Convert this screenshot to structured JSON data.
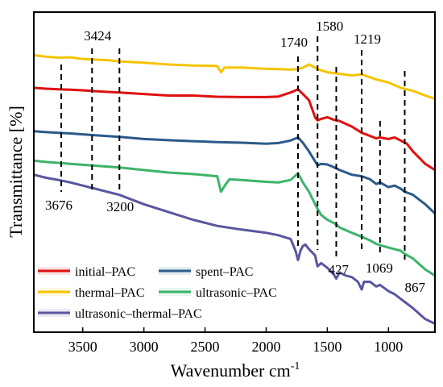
{
  "chart_data": {
    "type": "line",
    "xlabel_main": "Wavenumber cm",
    "xlabel_sup": "-1",
    "ylabel": "Transmittance [%]",
    "xlim": [
      3900,
      620
    ],
    "x_reversed": true,
    "yticks_shown": false,
    "x_ticks": [
      3500,
      3000,
      2500,
      2000,
      1500,
      1000
    ],
    "x_tick_labels": [
      "3500",
      "3000",
      "2500",
      "2000",
      "1500",
      "1000"
    ],
    "grid": false,
    "legend_position": "lower-left",
    "series": [
      {
        "name": "thermal–PAC",
        "color": "#f5c400",
        "points": [
          [
            3900,
            0.83
          ],
          [
            3800,
            0.825
          ],
          [
            3700,
            0.822
          ],
          [
            3600,
            0.823
          ],
          [
            3500,
            0.818
          ],
          [
            3424,
            0.816
          ],
          [
            3300,
            0.814
          ],
          [
            3200,
            0.81
          ],
          [
            3000,
            0.806
          ],
          [
            2800,
            0.8
          ],
          [
            2600,
            0.797
          ],
          [
            2400,
            0.795
          ],
          [
            2370,
            0.775
          ],
          [
            2340,
            0.79
          ],
          [
            2200,
            0.79
          ],
          [
            2000,
            0.786
          ],
          [
            1900,
            0.785
          ],
          [
            1800,
            0.784
          ],
          [
            1740,
            0.785
          ],
          [
            1700,
            0.79
          ],
          [
            1650,
            0.8
          ],
          [
            1600,
            0.79
          ],
          [
            1580,
            0.785
          ],
          [
            1500,
            0.775
          ],
          [
            1400,
            0.77
          ],
          [
            1300,
            0.765
          ],
          [
            1219,
            0.768
          ],
          [
            1100,
            0.752
          ],
          [
            1000,
            0.742
          ],
          [
            900,
            0.725
          ],
          [
            800,
            0.715
          ],
          [
            700,
            0.7
          ],
          [
            620,
            0.69
          ]
        ]
      },
      {
        "name": "initial–PAC",
        "color": "#e01010",
        "points": [
          [
            3900,
            0.725
          ],
          [
            3800,
            0.722
          ],
          [
            3700,
            0.72
          ],
          [
            3600,
            0.719
          ],
          [
            3500,
            0.717
          ],
          [
            3400,
            0.714
          ],
          [
            3200,
            0.71
          ],
          [
            3000,
            0.705
          ],
          [
            2800,
            0.7
          ],
          [
            2600,
            0.7
          ],
          [
            2400,
            0.696
          ],
          [
            2200,
            0.695
          ],
          [
            2000,
            0.695
          ],
          [
            1900,
            0.697
          ],
          [
            1800,
            0.71
          ],
          [
            1740,
            0.72
          ],
          [
            1700,
            0.705
          ],
          [
            1650,
            0.685
          ],
          [
            1600,
            0.63
          ],
          [
            1580,
            0.62
          ],
          [
            1550,
            0.625
          ],
          [
            1500,
            0.63
          ],
          [
            1450,
            0.622
          ],
          [
            1400,
            0.618
          ],
          [
            1300,
            0.6
          ],
          [
            1219,
            0.58
          ],
          [
            1150,
            0.57
          ],
          [
            1100,
            0.562
          ],
          [
            1069,
            0.565
          ],
          [
            1000,
            0.56
          ],
          [
            950,
            0.565
          ],
          [
            900,
            0.555
          ],
          [
            850,
            0.545
          ],
          [
            800,
            0.52
          ],
          [
            700,
            0.48
          ],
          [
            620,
            0.46
          ]
        ]
      },
      {
        "name": "spent–PAC",
        "color": "#2a5a8a",
        "points": [
          [
            3900,
            0.585
          ],
          [
            3800,
            0.582
          ],
          [
            3700,
            0.58
          ],
          [
            3600,
            0.578
          ],
          [
            3500,
            0.575
          ],
          [
            3400,
            0.572
          ],
          [
            3200,
            0.567
          ],
          [
            3000,
            0.56
          ],
          [
            2800,
            0.556
          ],
          [
            2600,
            0.553
          ],
          [
            2400,
            0.55
          ],
          [
            2200,
            0.548
          ],
          [
            2000,
            0.545
          ],
          [
            1900,
            0.547
          ],
          [
            1800,
            0.555
          ],
          [
            1740,
            0.565
          ],
          [
            1700,
            0.548
          ],
          [
            1650,
            0.52
          ],
          [
            1600,
            0.488
          ],
          [
            1580,
            0.475
          ],
          [
            1550,
            0.48
          ],
          [
            1500,
            0.478
          ],
          [
            1450,
            0.47
          ],
          [
            1400,
            0.46
          ],
          [
            1300,
            0.445
          ],
          [
            1219,
            0.44
          ],
          [
            1150,
            0.43
          ],
          [
            1100,
            0.415
          ],
          [
            1069,
            0.42
          ],
          [
            1000,
            0.405
          ],
          [
            950,
            0.41
          ],
          [
            900,
            0.4
          ],
          [
            867,
            0.39
          ],
          [
            800,
            0.38
          ],
          [
            700,
            0.35
          ],
          [
            620,
            0.32
          ]
        ]
      },
      {
        "name": "ultrasonic–PAC",
        "color": "#3cb46a",
        "points": [
          [
            3900,
            0.49
          ],
          [
            3800,
            0.486
          ],
          [
            3700,
            0.483
          ],
          [
            3600,
            0.48
          ],
          [
            3500,
            0.477
          ],
          [
            3400,
            0.474
          ],
          [
            3200,
            0.468
          ],
          [
            3000,
            0.46
          ],
          [
            2800,
            0.452
          ],
          [
            2600,
            0.447
          ],
          [
            2400,
            0.44
          ],
          [
            2370,
            0.39
          ],
          [
            2330,
            0.415
          ],
          [
            2300,
            0.43
          ],
          [
            2200,
            0.428
          ],
          [
            2000,
            0.422
          ],
          [
            1900,
            0.42
          ],
          [
            1800,
            0.428
          ],
          [
            1740,
            0.45
          ],
          [
            1700,
            0.42
          ],
          [
            1650,
            0.39
          ],
          [
            1600,
            0.35
          ],
          [
            1580,
            0.335
          ],
          [
            1550,
            0.315
          ],
          [
            1500,
            0.3
          ],
          [
            1450,
            0.29
          ],
          [
            1427,
            0.285
          ],
          [
            1400,
            0.275
          ],
          [
            1300,
            0.258
          ],
          [
            1219,
            0.245
          ],
          [
            1150,
            0.233
          ],
          [
            1100,
            0.222
          ],
          [
            1069,
            0.218
          ],
          [
            1000,
            0.21
          ],
          [
            950,
            0.205
          ],
          [
            900,
            0.2
          ],
          [
            867,
            0.19
          ],
          [
            800,
            0.175
          ],
          [
            700,
            0.14
          ],
          [
            620,
            0.12
          ]
        ]
      },
      {
        "name": "ultrasonic–thermal–PAC",
        "color": "#5a56a0",
        "points": [
          [
            3900,
            0.445
          ],
          [
            3800,
            0.435
          ],
          [
            3700,
            0.428
          ],
          [
            3600,
            0.42
          ],
          [
            3500,
            0.41
          ],
          [
            3400,
            0.4
          ],
          [
            3200,
            0.38
          ],
          [
            3000,
            0.35
          ],
          [
            2800,
            0.325
          ],
          [
            2600,
            0.3
          ],
          [
            2400,
            0.28
          ],
          [
            2200,
            0.268
          ],
          [
            2000,
            0.258
          ],
          [
            1900,
            0.25
          ],
          [
            1800,
            0.238
          ],
          [
            1760,
            0.2
          ],
          [
            1740,
            0.17
          ],
          [
            1720,
            0.2
          ],
          [
            1700,
            0.215
          ],
          [
            1680,
            0.22
          ],
          [
            1650,
            0.205
          ],
          [
            1600,
            0.185
          ],
          [
            1580,
            0.15
          ],
          [
            1550,
            0.16
          ],
          [
            1500,
            0.145
          ],
          [
            1450,
            0.125
          ],
          [
            1427,
            0.11
          ],
          [
            1400,
            0.13
          ],
          [
            1350,
            0.12
          ],
          [
            1300,
            0.115
          ],
          [
            1250,
            0.1
          ],
          [
            1219,
            0.075
          ],
          [
            1200,
            0.1
          ],
          [
            1150,
            0.1
          ],
          [
            1100,
            0.085
          ],
          [
            1069,
            0.09
          ],
          [
            1000,
            0.07
          ],
          [
            950,
            0.06
          ],
          [
            900,
            0.045
          ],
          [
            867,
            0.035
          ],
          [
            800,
            0.015
          ],
          [
            700,
            -0.02
          ],
          [
            620,
            -0.035
          ]
        ]
      }
    ],
    "annotations": [
      {
        "label": "3424",
        "x": 3424,
        "label_pos": "top"
      },
      {
        "label": "3676",
        "x": 3676,
        "label_pos": "bottom"
      },
      {
        "label": "3200",
        "x": 3200,
        "label_pos": "bottom"
      },
      {
        "label": "1740",
        "x": 1740,
        "label_pos": "top"
      },
      {
        "label": "1580",
        "x": 1580,
        "label_pos": "top"
      },
      {
        "label": "1219",
        "x": 1219,
        "label_pos": "top"
      },
      {
        "label": "427",
        "x": 1427,
        "label_pos": "bottom"
      },
      {
        "label": "1069",
        "x": 1069,
        "label_pos": "bottom"
      },
      {
        "label": "867",
        "x": 867,
        "label_pos": "bottom"
      }
    ],
    "legend_rows": [
      [
        "initial–PAC",
        "spent–PAC"
      ],
      [
        "thermal–PAC",
        "ultrasonic–PAC"
      ],
      [
        "ultrasonic–thermal–PAC"
      ]
    ]
  }
}
